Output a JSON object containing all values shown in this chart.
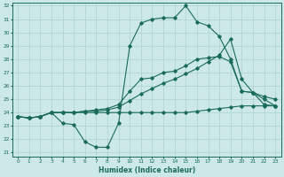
{
  "xlabel": "Humidex (Indice chaleur)",
  "background_color": "#cce8e8",
  "grid_color": "#aad0d0",
  "line_color": "#1a6b5a",
  "x_values": [
    0,
    1,
    2,
    3,
    4,
    5,
    6,
    7,
    8,
    9,
    10,
    11,
    12,
    13,
    14,
    15,
    16,
    17,
    18,
    19,
    20,
    21,
    22,
    23
  ],
  "series1": [
    23.7,
    23.6,
    23.7,
    24.0,
    23.2,
    23.1,
    21.8,
    21.4,
    21.4,
    23.2,
    29.0,
    30.7,
    31.0,
    31.1,
    31.1,
    32.0,
    30.8,
    30.5,
    29.7,
    28.0,
    25.6,
    25.5,
    24.6,
    24.5
  ],
  "series2": [
    23.7,
    23.6,
    23.7,
    24.0,
    24.0,
    24.0,
    24.0,
    24.0,
    24.0,
    24.0,
    24.0,
    24.0,
    24.0,
    24.0,
    24.0,
    24.0,
    24.1,
    24.2,
    24.3,
    24.4,
    24.5,
    24.5,
    24.5,
    24.5
  ],
  "series3": [
    23.7,
    23.6,
    23.7,
    24.0,
    24.0,
    24.0,
    24.1,
    24.1,
    24.2,
    24.4,
    24.9,
    25.4,
    25.8,
    26.2,
    26.5,
    26.9,
    27.3,
    27.8,
    28.3,
    29.5,
    26.5,
    25.5,
    25.2,
    25.0
  ],
  "series4": [
    23.7,
    23.6,
    23.7,
    24.0,
    24.0,
    24.0,
    24.1,
    24.2,
    24.3,
    24.6,
    25.6,
    26.5,
    26.6,
    27.0,
    27.1,
    27.5,
    28.0,
    28.1,
    28.2,
    27.8,
    25.6,
    25.5,
    25.0,
    24.5
  ],
  "ylim": [
    21,
    32
  ],
  "xlim": [
    -0.5,
    23.5
  ],
  "yticks": [
    21,
    22,
    23,
    24,
    25,
    26,
    27,
    28,
    29,
    30,
    31,
    32
  ],
  "xticks": [
    0,
    1,
    2,
    3,
    4,
    5,
    6,
    7,
    8,
    9,
    10,
    11,
    12,
    13,
    14,
    15,
    16,
    17,
    18,
    19,
    20,
    21,
    22,
    23
  ]
}
